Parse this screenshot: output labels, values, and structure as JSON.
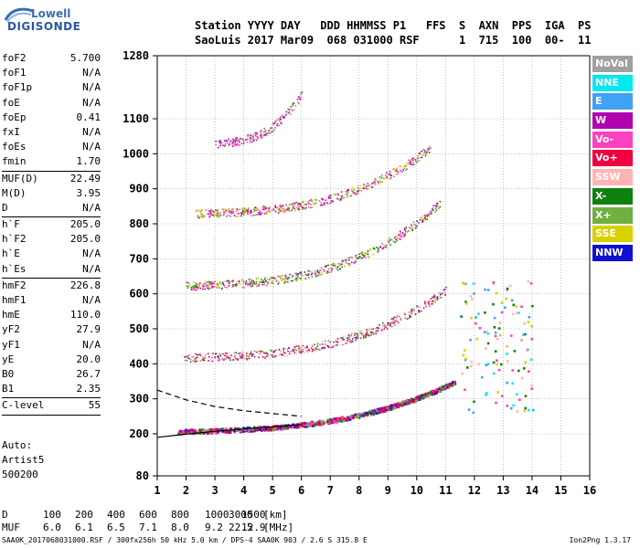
{
  "logo": {
    "line1": "Lowell",
    "line2": "DIGISONDE"
  },
  "header": {
    "labels": "Station YYYY DAY   DDD HHMMSS P1   FFS  S  AXN  PPS  IGA  PS",
    "values": "SaoLuis 2017 Mar09  068 031000 RSF      1  715  100  00-  11"
  },
  "params": {
    "group1": [
      {
        "label": "foF2",
        "value": "5.700"
      },
      {
        "label": "foF1",
        "value": "N/A"
      },
      {
        "label": "foF1p",
        "value": "N/A"
      },
      {
        "label": "foE",
        "value": "N/A"
      },
      {
        "label": "foEp",
        "value": "0.41"
      },
      {
        "label": "fxI",
        "value": "N/A"
      },
      {
        "label": "foEs",
        "value": "N/A"
      },
      {
        "label": "fmin",
        "value": "1.70"
      }
    ],
    "group2": [
      {
        "label": "MUF(D)",
        "value": "22.49"
      },
      {
        "label": "M(D)",
        "value": "3.95"
      },
      {
        "label": "D",
        "value": "N/A"
      }
    ],
    "group3": [
      {
        "label": "h`F",
        "value": "205.0"
      },
      {
        "label": "h`F2",
        "value": "205.0"
      },
      {
        "label": "h`E",
        "value": "N/A"
      },
      {
        "label": "h`Es",
        "value": "N/A"
      }
    ],
    "group4": [
      {
        "label": "hmF2",
        "value": "226.8"
      },
      {
        "label": "hmF1",
        "value": "N/A"
      },
      {
        "label": "hmE",
        "value": "110.0"
      },
      {
        "label": "yF2",
        "value": "27.9"
      },
      {
        "label": "yF1",
        "value": "N/A"
      },
      {
        "label": "yE",
        "value": "20.0"
      },
      {
        "label": "B0",
        "value": "26.7"
      },
      {
        "label": "B1",
        "value": "2.35"
      }
    ],
    "group5": [
      {
        "label": "C-level",
        "value": "55"
      }
    ]
  },
  "auto": {
    "line1": "Auto:",
    "line2": "Artist5",
    "line3": "500200"
  },
  "legend": [
    {
      "label": "NoVal",
      "color": "#a0a0a0"
    },
    {
      "label": "NNE",
      "color": "#00e8f0"
    },
    {
      "label": "E",
      "color": "#3fa2f5"
    },
    {
      "label": "W",
      "color": "#b000b0"
    },
    {
      "label": "Vo-",
      "color": "#ff40c0"
    },
    {
      "label": "Vo+",
      "color": "#f00040"
    },
    {
      "label": "SSW",
      "color": "#ffb4b4"
    },
    {
      "label": "X-",
      "color": "#108010"
    },
    {
      "label": "X+",
      "color": "#70b040"
    },
    {
      "label": "SSE",
      "color": "#d8d000"
    },
    {
      "label": "NNW",
      "color": "#1010d0"
    }
  ],
  "muf_table": {
    "d_label": "D",
    "d_values": [
      "100",
      "200",
      "400",
      "600",
      "800",
      "1000",
      "1500",
      "3000"
    ],
    "d_unit": "[km]",
    "muf_label": "MUF",
    "muf_values": [
      "6.0",
      "6.1",
      "6.5",
      "7.1",
      "8.0",
      "9.2",
      "12.9",
      "22.5"
    ],
    "muf_unit": "[MHz]"
  },
  "footer": {
    "left": "SAA0K_2017068031000.RSF / 300fx256h 50 kHz 5.0 km / DPS-4 SAA0K 903 / 2.6 S 315.8 E",
    "right": "Ion2Png 1.3.17"
  },
  "chart_data": {
    "type": "scatter",
    "x_ticks": [
      "1",
      "2",
      "3",
      "4",
      "5",
      "6",
      "7",
      "8",
      "9",
      "10",
      "11",
      "12",
      "13",
      "14",
      "15",
      "16"
    ],
    "y_ticks": [
      "80",
      "200",
      "300",
      "400",
      "500",
      "600",
      "700",
      "800",
      "900",
      "1000",
      "1100",
      "1280"
    ],
    "xlim": [
      1,
      16
    ],
    "ylim": [
      80,
      1280
    ],
    "grid": true,
    "legend_position": "right",
    "traces": [
      {
        "x_start": 1.7,
        "x_end": 11.3,
        "y_start": 208,
        "y_end": 330,
        "colors": [
          "Vo+",
          "Vo-",
          "X-",
          "X+",
          "NNW",
          "W"
        ]
      },
      {
        "x_start": 1.9,
        "x_end": 11.0,
        "y_start": 418,
        "y_end": 590,
        "colors": [
          "Vo+",
          "Vo-",
          "X-",
          "X+",
          "W",
          "SSW"
        ]
      },
      {
        "x_start": 2.0,
        "x_end": 10.8,
        "y_start": 624,
        "y_end": 840,
        "colors": [
          "Vo-",
          "X+",
          "SSE",
          "W",
          "X-"
        ]
      },
      {
        "x_start": 2.3,
        "x_end": 10.5,
        "y_start": 830,
        "y_end": 1000,
        "colors": [
          "Vo-",
          "X+",
          "SSE",
          "W"
        ]
      },
      {
        "x_start": 3.0,
        "x_end": 6.0,
        "y_start": 1030,
        "y_end": 1150,
        "colors": [
          "Vo-",
          "X+",
          "W"
        ]
      }
    ],
    "profile_dashed": [
      [
        1,
        325
      ],
      [
        2,
        297
      ],
      [
        3,
        278
      ],
      [
        4,
        266
      ],
      [
        5,
        258
      ],
      [
        6,
        250
      ]
    ],
    "profile_solid": [
      [
        1,
        190
      ],
      [
        2,
        199
      ],
      [
        3,
        207
      ],
      [
        4,
        214
      ],
      [
        5,
        220
      ],
      [
        6,
        226
      ]
    ]
  }
}
